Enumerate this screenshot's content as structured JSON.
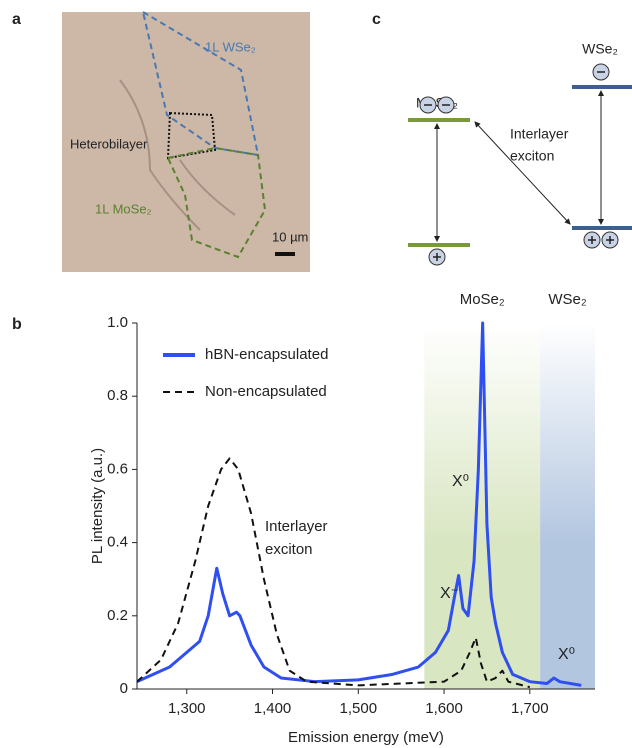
{
  "panel_a": {
    "label": "a",
    "wse2_label": "1L WSe₂",
    "hetero_label": "Heterobilayer",
    "mose2_label": "1L MoSe₂",
    "scale_bar": "10 µm"
  },
  "panel_c": {
    "label": "c",
    "mose2": "MoSe₂",
    "wse2": "WSe₂",
    "exciton_lines": [
      "Interlayer",
      "exciton"
    ]
  },
  "chart_data": {
    "type": "line",
    "panel_label": "b",
    "x_label": "Emission energy (meV)",
    "y_label": "PL intensity (a.u.)",
    "xlim": [
      1242,
      1776
    ],
    "ylim": [
      0,
      1
    ],
    "xticks": [
      {
        "value": 1300,
        "label": "1,300"
      },
      {
        "value": 1400,
        "label": "1,400"
      },
      {
        "value": 1500,
        "label": "1,500"
      },
      {
        "value": 1600,
        "label": "1,600"
      },
      {
        "value": 1700,
        "label": "1,700"
      }
    ],
    "yticks": [
      0,
      0.2,
      0.4,
      0.6,
      0.8,
      {
        "value": 1,
        "label": "1.0"
      }
    ],
    "legend": "upper left",
    "regions": [
      {
        "name": "MoSe₂",
        "from": 1577,
        "to": 1712,
        "color": "#d9e6c2"
      },
      {
        "name": "WSe₂",
        "from": 1712,
        "to": 1776,
        "color": "#b3c6e0"
      }
    ],
    "annotations": [
      [
        "Interlayer",
        "exciton"
      ],
      "X⁰",
      "X⁻",
      "X⁰"
    ],
    "series": [
      {
        "name": "hBN-encapsulated",
        "color": "#2f4ff0",
        "style": "solid",
        "x": [
          1242,
          1280,
          1300,
          1315,
          1325,
          1335,
          1342,
          1350,
          1358,
          1362,
          1375,
          1390,
          1410,
          1450,
          1500,
          1540,
          1570,
          1590,
          1605,
          1612,
          1617,
          1622,
          1628,
          1635,
          1640,
          1645,
          1650,
          1655,
          1660,
          1668,
          1680,
          1700,
          1720,
          1728,
          1735,
          1760
        ],
        "values": [
          0.02,
          0.06,
          0.1,
          0.13,
          0.2,
          0.33,
          0.26,
          0.2,
          0.21,
          0.2,
          0.12,
          0.06,
          0.03,
          0.02,
          0.025,
          0.04,
          0.06,
          0.1,
          0.16,
          0.25,
          0.31,
          0.22,
          0.2,
          0.35,
          0.6,
          1.0,
          0.45,
          0.25,
          0.18,
          0.1,
          0.04,
          0.02,
          0.015,
          0.03,
          0.02,
          0.01
        ]
      },
      {
        "name": "Non-encapsulated",
        "color": "#111111",
        "style": "dashed",
        "x": [
          1242,
          1270,
          1290,
          1310,
          1325,
          1340,
          1350,
          1360,
          1375,
          1390,
          1405,
          1420,
          1440,
          1500,
          1600,
          1620,
          1630,
          1637,
          1643,
          1650,
          1660,
          1668,
          1675,
          1700
        ],
        "values": [
          0.02,
          0.08,
          0.18,
          0.35,
          0.5,
          0.6,
          0.63,
          0.6,
          0.48,
          0.3,
          0.15,
          0.05,
          0.02,
          0.01,
          0.02,
          0.05,
          0.1,
          0.14,
          0.07,
          0.02,
          0.03,
          0.05,
          0.02,
          0.005
        ]
      }
    ]
  }
}
